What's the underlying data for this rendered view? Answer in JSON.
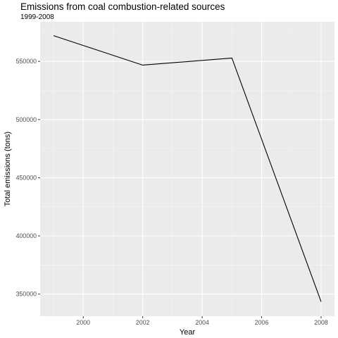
{
  "chart_data": {
    "type": "line",
    "title": "Emissions from coal combustion-related sources",
    "subtitle": "1999-2008",
    "xlabel": "Year",
    "ylabel": "Total emissions (tons)",
    "x": [
      1999,
      2002,
      2005,
      2008
    ],
    "series": [
      {
        "values": [
          572126,
          546789,
          552881,
          343432
        ]
      }
    ],
    "xlim": [
      1998.55,
      2008.45
    ],
    "ylim": [
      331000,
      584000
    ],
    "xticks": [
      2000,
      2002,
      2004,
      2006,
      2008
    ],
    "xtick_labels": [
      "2000",
      "2002",
      "2004",
      "2006",
      "2008"
    ],
    "yticks": [
      350000,
      400000,
      450000,
      500000,
      550000
    ],
    "ytick_labels": [
      "350000",
      "400000",
      "450000",
      "500000",
      "550000"
    ],
    "grid": true,
    "legend": "none",
    "colors": {
      "panel": "#ebebeb",
      "grid_major": "#ffffff",
      "grid_minor": "#f5f5f5",
      "line": "#000000",
      "tick_text": "#4d4d4d",
      "tick_mark": "#333333"
    }
  }
}
